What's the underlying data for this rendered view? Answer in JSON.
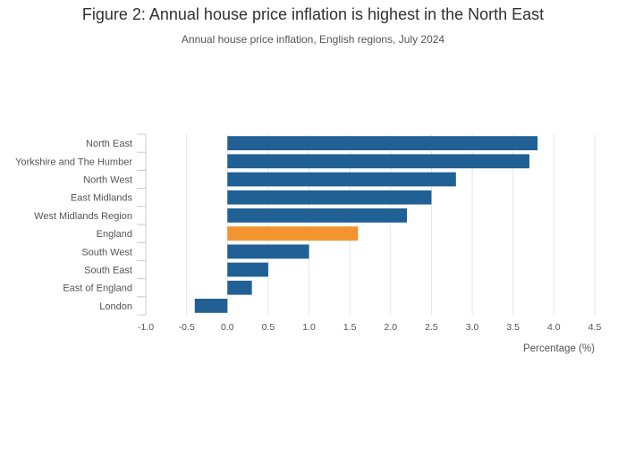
{
  "chart_data": {
    "type": "bar",
    "orientation": "horizontal",
    "title": "Figure 2: Annual house price inflation is highest in the North East",
    "subtitle": "Annual house price inflation, English regions, July 2024",
    "xlabel": "Percentage (%)",
    "ylabel": "",
    "xlim": [
      -1.0,
      4.5
    ],
    "xticks": [
      "-1.0",
      "-0.5",
      "0.0",
      "0.5",
      "1.0",
      "1.5",
      "2.0",
      "2.5",
      "3.0",
      "3.5",
      "4.0",
      "4.5"
    ],
    "grid": true,
    "categories": [
      "North East",
      "Yorkshire and The Humber",
      "North West",
      "East Midlands",
      "West Midlands Region",
      "England",
      "South West",
      "South East",
      "East of England",
      "London"
    ],
    "values": [
      3.8,
      3.7,
      2.8,
      2.5,
      2.2,
      1.6,
      1.0,
      0.5,
      0.3,
      -0.4
    ],
    "highlight_category": "England",
    "colors": {
      "default": "#206095",
      "highlight": "#f39431",
      "grid": "#e6e6e6",
      "axis": "#c9c9d9"
    }
  }
}
